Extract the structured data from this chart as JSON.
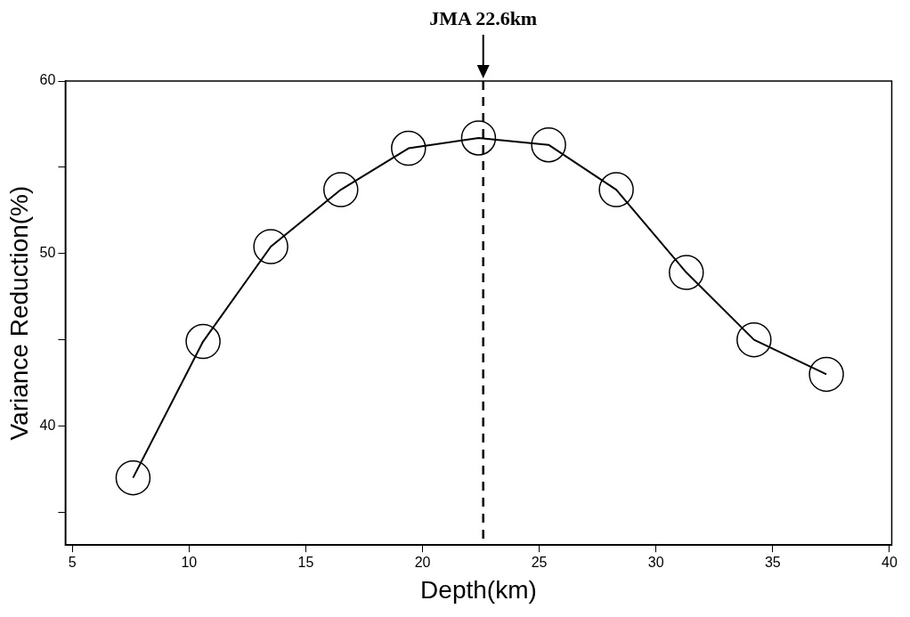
{
  "chart_data": {
    "type": "line",
    "xlabel": "Depth(km)",
    "ylabel": "Variance Reduction(%)",
    "x": [
      7.6,
      10.6,
      13.5,
      16.5,
      19.4,
      22.4,
      25.4,
      28.3,
      31.3,
      34.2,
      37.3
    ],
    "series": [
      {
        "color": "#000000",
        "values": [
          37.0,
          44.9,
          50.4,
          53.7,
          56.1,
          56.7,
          56.3,
          53.7,
          48.9,
          45.0,
          43.0
        ]
      }
    ],
    "xlim": [
      4.7,
      40.1
    ],
    "ylim": [
      33.1,
      60
    ],
    "xticks": [
      5,
      10,
      15,
      20,
      25,
      30,
      35,
      40
    ],
    "yticks": [
      {
        "value": 35,
        "label": null
      },
      40,
      {
        "value": 45,
        "label": null
      },
      50,
      {
        "value": 55,
        "label": null
      },
      60
    ],
    "ref_lines": [
      {
        "axis": "x",
        "value": 22.6,
        "label": "JMA 22.6km",
        "line_style": "dashed",
        "color": "#000000"
      }
    ],
    "marker": "circle",
    "line_style": "solid",
    "grid": false,
    "legend": false
  }
}
